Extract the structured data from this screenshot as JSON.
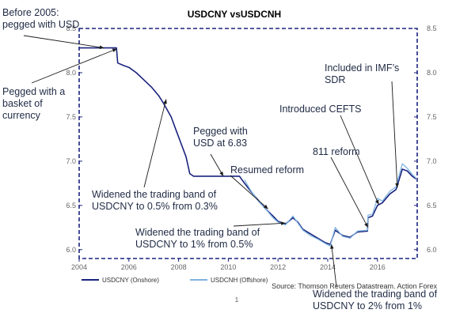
{
  "chart_data": {
    "type": "line",
    "title": "USDCNY vsUSDCNH",
    "xlim": [
      2004,
      2017.6
    ],
    "ylim": [
      5.9,
      8.5
    ],
    "x_ticks": [
      "2004",
      "2006",
      "2008",
      "2010",
      "2012",
      "2014",
      "2016"
    ],
    "y_ticks_left": [
      "6.0",
      "6.5",
      "7.0",
      "7.5",
      "8.0",
      "8.5"
    ],
    "y_ticks_right": [
      "6.0",
      "6.5",
      "7.0",
      "7.5",
      "8.0",
      "8.5"
    ],
    "grid": false,
    "legend_position": "bottom-left",
    "series": [
      {
        "name": "USDCNY (Onshore)",
        "color": "#1a237e",
        "points": [
          [
            2004.0,
            8.28
          ],
          [
            2005.5,
            8.28
          ],
          [
            2005.55,
            8.11
          ],
          [
            2005.8,
            8.08
          ],
          [
            2006.0,
            8.06
          ],
          [
            2006.3,
            8.0
          ],
          [
            2006.6,
            7.92
          ],
          [
            2006.9,
            7.84
          ],
          [
            2007.2,
            7.74
          ],
          [
            2007.4,
            7.65
          ],
          [
            2007.7,
            7.5
          ],
          [
            2007.9,
            7.35
          ],
          [
            2008.1,
            7.2
          ],
          [
            2008.3,
            7.05
          ],
          [
            2008.45,
            6.86
          ],
          [
            2008.6,
            6.83
          ],
          [
            2009.0,
            6.83
          ],
          [
            2009.5,
            6.83
          ],
          [
            2010.0,
            6.83
          ],
          [
            2010.45,
            6.83
          ],
          [
            2010.6,
            6.77
          ],
          [
            2010.9,
            6.66
          ],
          [
            2011.2,
            6.56
          ],
          [
            2011.5,
            6.46
          ],
          [
            2011.8,
            6.38
          ],
          [
            2012.0,
            6.32
          ],
          [
            2012.3,
            6.29
          ],
          [
            2012.6,
            6.36
          ],
          [
            2012.8,
            6.31
          ],
          [
            2013.0,
            6.23
          ],
          [
            2013.3,
            6.18
          ],
          [
            2013.6,
            6.13
          ],
          [
            2013.9,
            6.08
          ],
          [
            2014.1,
            6.06
          ],
          [
            2014.3,
            6.22
          ],
          [
            2014.6,
            6.16
          ],
          [
            2014.9,
            6.14
          ],
          [
            2015.2,
            6.2
          ],
          [
            2015.6,
            6.21
          ],
          [
            2015.62,
            6.36
          ],
          [
            2015.8,
            6.38
          ],
          [
            2016.0,
            6.5
          ],
          [
            2016.2,
            6.53
          ],
          [
            2016.5,
            6.63
          ],
          [
            2016.75,
            6.68
          ],
          [
            2017.0,
            6.91
          ],
          [
            2017.2,
            6.89
          ],
          [
            2017.4,
            6.83
          ],
          [
            2017.55,
            6.8
          ]
        ]
      },
      {
        "name": "USDCNH (Offshore)",
        "color": "#7fb3e0",
        "points": [
          [
            2010.65,
            6.79
          ],
          [
            2010.9,
            6.67
          ],
          [
            2011.2,
            6.55
          ],
          [
            2011.5,
            6.46
          ],
          [
            2011.8,
            6.36
          ],
          [
            2012.0,
            6.31
          ],
          [
            2012.3,
            6.28
          ],
          [
            2012.6,
            6.38
          ],
          [
            2012.8,
            6.3
          ],
          [
            2013.0,
            6.22
          ],
          [
            2013.3,
            6.16
          ],
          [
            2013.6,
            6.12
          ],
          [
            2013.9,
            6.07
          ],
          [
            2014.1,
            6.04
          ],
          [
            2014.3,
            6.25
          ],
          [
            2014.6,
            6.15
          ],
          [
            2014.9,
            6.13
          ],
          [
            2015.2,
            6.21
          ],
          [
            2015.6,
            6.22
          ],
          [
            2015.62,
            6.39
          ],
          [
            2015.8,
            6.4
          ],
          [
            2016.0,
            6.58
          ],
          [
            2016.2,
            6.55
          ],
          [
            2016.5,
            6.66
          ],
          [
            2016.75,
            6.71
          ],
          [
            2017.0,
            6.97
          ],
          [
            2017.2,
            6.92
          ],
          [
            2017.4,
            6.85
          ],
          [
            2017.55,
            6.81
          ]
        ]
      }
    ],
    "annotations": [
      {
        "lines": [
          "Before 2005:",
          "pegged with USD"
        ],
        "target": [
          2005.0,
          8.28
        ]
      },
      {
        "lines": [
          "Pegged with a",
          "basket of",
          "currency"
        ],
        "target": [
          2005.52,
          8.27
        ]
      },
      {
        "lines": [
          "Pegged with",
          "USD at 6.83"
        ],
        "target": [
          2009.8,
          6.83
        ]
      },
      {
        "lines": [
          "Resumed reform"
        ],
        "target": [
          2011.6,
          6.46
        ]
      },
      {
        "lines": [
          "Widened the trading band of",
          "USDCNY to 0.5% from 0.3%"
        ],
        "target": [
          2007.5,
          7.7
        ]
      },
      {
        "lines": [
          "Widened the trading band of",
          "USDCNY to 1% from 0.5%"
        ],
        "target": [
          2012.3,
          6.3
        ]
      },
      {
        "lines": [
          "Included in IMF’s",
          "SDR"
        ],
        "target": [
          2016.8,
          6.7
        ]
      },
      {
        "lines": [
          "Introduced CEFTS"
        ],
        "target": [
          2016.05,
          6.51
        ]
      },
      {
        "lines": [
          "811 reform"
        ],
        "target": [
          2015.62,
          6.25
        ]
      },
      {
        "lines": [
          "Widened the trading band of",
          "USDCNY to 2% from 1%"
        ],
        "target": [
          2014.15,
          6.06
        ]
      }
    ],
    "source": "Source: Thomson Reuters Datastream. Action Forex",
    "page_number": "1"
  }
}
